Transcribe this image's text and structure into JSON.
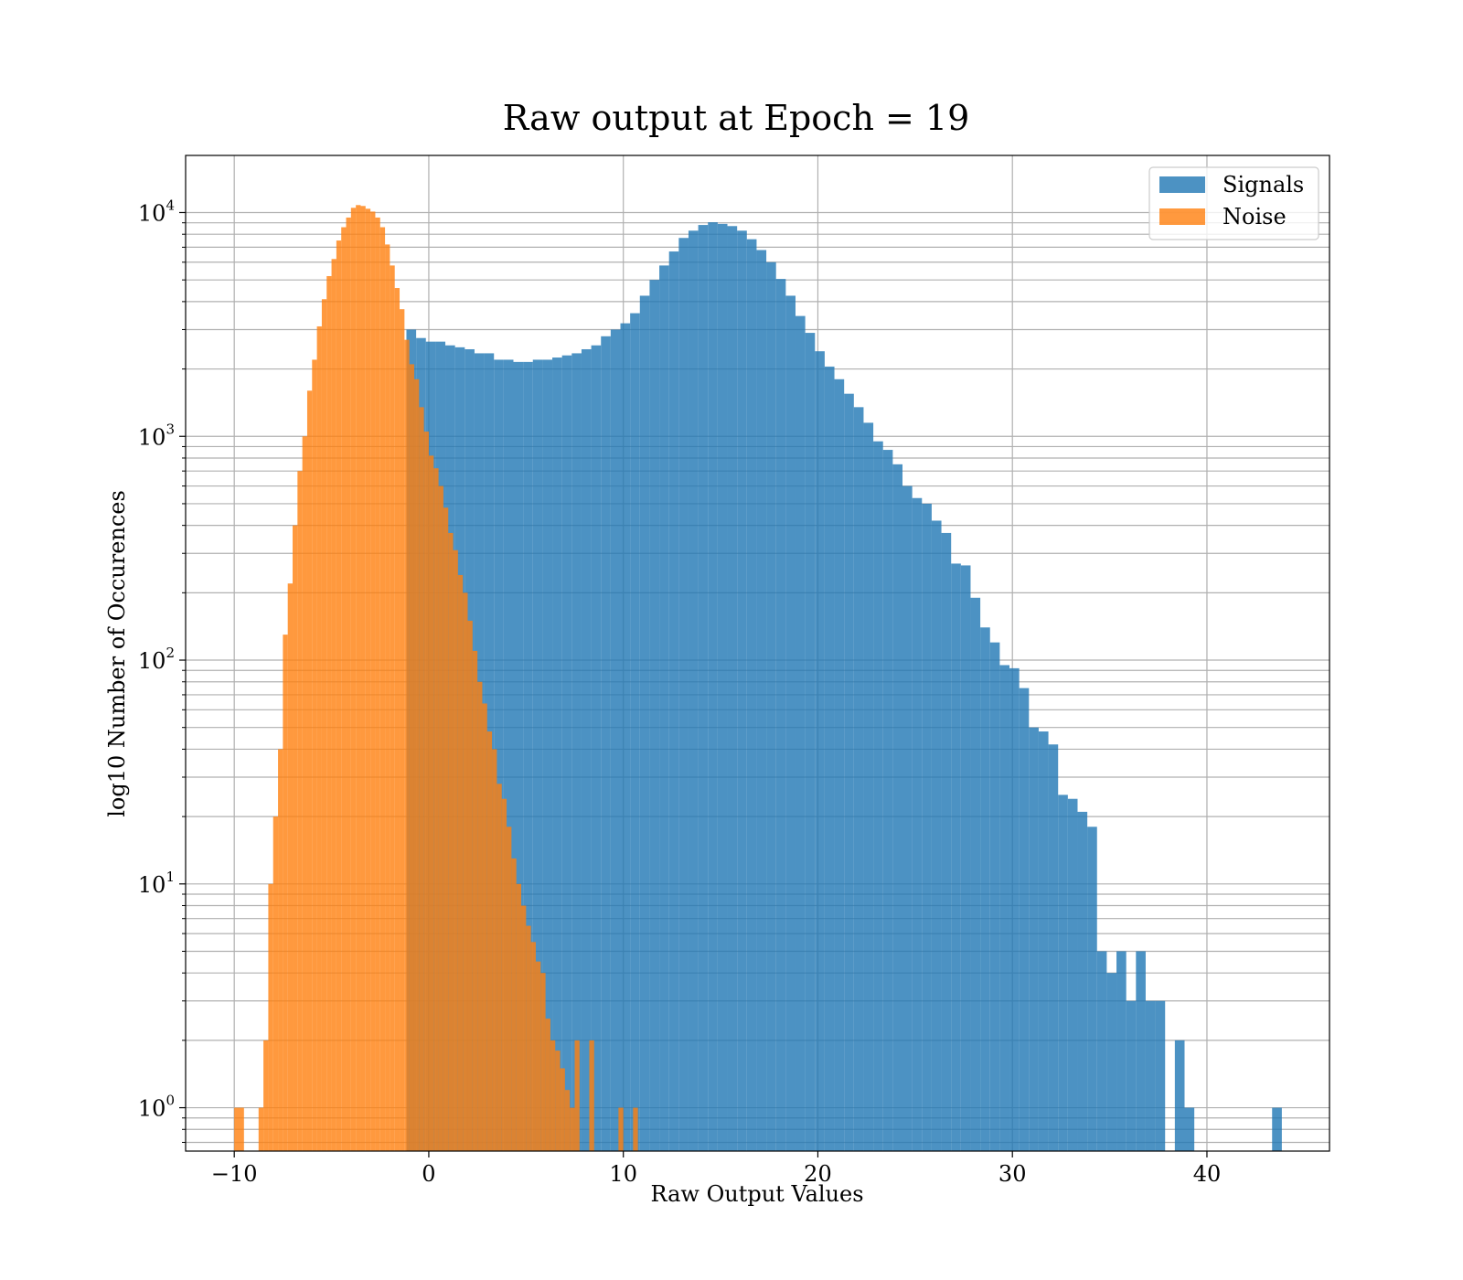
{
  "chart_data": {
    "type": "histogram",
    "title": "Raw output at Epoch = 19",
    "xlabel": "Raw Output Values",
    "ylabel": "log10 Number of Occurences",
    "xlim": [
      -12.5,
      46.3
    ],
    "ylim": [
      0.64,
      18000
    ],
    "yscale": "log",
    "grid": true,
    "legend_position": "top-right",
    "x_ticks": [
      {
        "value": -10,
        "label": "−10"
      },
      {
        "value": 0,
        "label": "0"
      },
      {
        "value": 10,
        "label": "10"
      },
      {
        "value": 20,
        "label": "20"
      },
      {
        "value": 30,
        "label": "30"
      },
      {
        "value": 40,
        "label": "40"
      }
    ],
    "y_ticks": [
      {
        "value": 1,
        "base": "10",
        "exp": "0"
      },
      {
        "value": 10,
        "base": "10",
        "exp": "1"
      },
      {
        "value": 100,
        "base": "10",
        "exp": "2"
      },
      {
        "value": 1000,
        "base": "10",
        "exp": "3"
      },
      {
        "value": 10000,
        "base": "10",
        "exp": "4"
      }
    ],
    "series": [
      {
        "name": "Signals",
        "color": "#1f77b4",
        "opacity": 0.8,
        "bins": [
          [
            -1.15,
            -0.65,
            3000
          ],
          [
            -0.65,
            -0.15,
            2750
          ],
          [
            -0.15,
            0.35,
            2650
          ],
          [
            0.35,
            0.85,
            2650
          ],
          [
            0.85,
            1.35,
            2550
          ],
          [
            1.35,
            1.85,
            2500
          ],
          [
            1.85,
            2.35,
            2450
          ],
          [
            2.35,
            2.85,
            2350
          ],
          [
            2.85,
            3.35,
            2350
          ],
          [
            3.35,
            3.85,
            2200
          ],
          [
            3.85,
            4.35,
            2200
          ],
          [
            4.35,
            4.85,
            2150
          ],
          [
            4.85,
            5.35,
            2150
          ],
          [
            5.35,
            5.85,
            2200
          ],
          [
            5.85,
            6.35,
            2200
          ],
          [
            6.35,
            6.85,
            2250
          ],
          [
            6.85,
            7.35,
            2300
          ],
          [
            7.35,
            7.85,
            2350
          ],
          [
            7.85,
            8.35,
            2450
          ],
          [
            8.35,
            8.85,
            2550
          ],
          [
            8.85,
            9.35,
            2800
          ],
          [
            9.35,
            9.85,
            3000
          ],
          [
            9.85,
            10.35,
            3200
          ],
          [
            10.35,
            10.85,
            3550
          ],
          [
            10.85,
            11.35,
            4250
          ],
          [
            11.35,
            11.85,
            5000
          ],
          [
            11.85,
            12.35,
            5800
          ],
          [
            12.35,
            12.85,
            6700
          ],
          [
            12.85,
            13.35,
            7700
          ],
          [
            13.35,
            13.85,
            8300
          ],
          [
            13.85,
            14.35,
            8800
          ],
          [
            14.35,
            14.85,
            9050
          ],
          [
            14.85,
            15.35,
            8900
          ],
          [
            15.35,
            15.85,
            8700
          ],
          [
            15.85,
            16.35,
            8300
          ],
          [
            16.35,
            16.85,
            7600
          ],
          [
            16.85,
            17.35,
            6800
          ],
          [
            17.35,
            17.85,
            6000
          ],
          [
            17.85,
            18.35,
            5050
          ],
          [
            18.35,
            18.85,
            4250
          ],
          [
            18.85,
            19.35,
            3450
          ],
          [
            19.35,
            19.85,
            2900
          ],
          [
            19.85,
            20.35,
            2400
          ],
          [
            20.35,
            20.85,
            2050
          ],
          [
            20.85,
            21.35,
            1800
          ],
          [
            21.35,
            21.85,
            1550
          ],
          [
            21.85,
            22.35,
            1350
          ],
          [
            22.35,
            22.85,
            1150
          ],
          [
            22.85,
            23.35,
            950
          ],
          [
            23.35,
            23.85,
            870
          ],
          [
            23.85,
            24.35,
            750
          ],
          [
            24.35,
            24.85,
            600
          ],
          [
            24.85,
            25.35,
            530
          ],
          [
            25.35,
            25.85,
            500
          ],
          [
            25.85,
            26.35,
            420
          ],
          [
            26.35,
            26.85,
            370
          ],
          [
            26.85,
            27.35,
            270
          ],
          [
            27.35,
            27.85,
            265
          ],
          [
            27.85,
            28.35,
            190
          ],
          [
            28.35,
            28.85,
            140
          ],
          [
            28.85,
            29.35,
            120
          ],
          [
            29.35,
            29.85,
            95
          ],
          [
            29.85,
            30.35,
            92
          ],
          [
            30.35,
            30.85,
            75
          ],
          [
            30.85,
            31.35,
            50
          ],
          [
            31.35,
            31.85,
            48
          ],
          [
            31.85,
            32.35,
            42
          ],
          [
            32.35,
            32.85,
            25
          ],
          [
            32.85,
            33.35,
            24
          ],
          [
            33.35,
            33.85,
            21
          ],
          [
            33.85,
            34.35,
            18
          ],
          [
            34.35,
            34.85,
            5
          ],
          [
            34.85,
            35.35,
            4
          ],
          [
            35.35,
            35.85,
            5
          ],
          [
            35.85,
            36.35,
            3
          ],
          [
            36.35,
            36.85,
            5
          ],
          [
            36.85,
            37.35,
            3
          ],
          [
            37.35,
            37.85,
            3
          ],
          [
            38.35,
            38.85,
            2
          ],
          [
            38.85,
            39.35,
            1
          ],
          [
            43.35,
            43.85,
            1
          ]
        ]
      },
      {
        "name": "Noise",
        "color": "#ff7f0e",
        "opacity": 0.8,
        "bins": [
          [
            -10.0,
            -9.5,
            1
          ],
          [
            -8.75,
            -8.5,
            1
          ],
          [
            -8.5,
            -8.25,
            2
          ],
          [
            -8.25,
            -8.0,
            10
          ],
          [
            -8.0,
            -7.75,
            20
          ],
          [
            -7.75,
            -7.5,
            40
          ],
          [
            -7.5,
            -7.25,
            130
          ],
          [
            -7.25,
            -7.0,
            220
          ],
          [
            -7.0,
            -6.75,
            400
          ],
          [
            -6.75,
            -6.5,
            700
          ],
          [
            -6.5,
            -6.25,
            1000
          ],
          [
            -6.25,
            -6.0,
            1600
          ],
          [
            -6.0,
            -5.75,
            2200
          ],
          [
            -5.75,
            -5.5,
            3100
          ],
          [
            -5.5,
            -5.25,
            4100
          ],
          [
            -5.25,
            -5.0,
            5200
          ],
          [
            -5.0,
            -4.75,
            6200
          ],
          [
            -4.75,
            -4.5,
            7500
          ],
          [
            -4.5,
            -4.25,
            8600
          ],
          [
            -4.25,
            -4.0,
            9500
          ],
          [
            -4.0,
            -3.75,
            10500
          ],
          [
            -3.75,
            -3.5,
            10800
          ],
          [
            -3.5,
            -3.25,
            10700
          ],
          [
            -3.25,
            -3.0,
            10400
          ],
          [
            -3.0,
            -2.75,
            10100
          ],
          [
            -2.75,
            -2.5,
            9500
          ],
          [
            -2.5,
            -2.25,
            8600
          ],
          [
            -2.25,
            -2.0,
            7200
          ],
          [
            -2.0,
            -1.75,
            5800
          ],
          [
            -1.75,
            -1.5,
            4600
          ],
          [
            -1.5,
            -1.25,
            3700
          ],
          [
            -1.25,
            -1.0,
            2700
          ],
          [
            -1.0,
            -0.75,
            2100
          ],
          [
            -0.75,
            -0.5,
            1800
          ],
          [
            -0.5,
            -0.25,
            1350
          ],
          [
            -0.25,
            0.0,
            1050
          ],
          [
            0.0,
            0.25,
            820
          ],
          [
            0.25,
            0.5,
            720
          ],
          [
            0.5,
            0.75,
            600
          ],
          [
            0.75,
            1.0,
            480
          ],
          [
            1.0,
            1.25,
            370
          ],
          [
            1.25,
            1.5,
            310
          ],
          [
            1.5,
            1.75,
            240
          ],
          [
            1.75,
            2.0,
            200
          ],
          [
            2.0,
            2.25,
            150
          ],
          [
            2.25,
            2.5,
            110
          ],
          [
            2.5,
            2.75,
            80
          ],
          [
            2.75,
            3.0,
            64
          ],
          [
            3.0,
            3.25,
            48
          ],
          [
            3.25,
            3.5,
            40
          ],
          [
            3.5,
            3.75,
            28
          ],
          [
            3.75,
            4.0,
            24
          ],
          [
            4.0,
            4.25,
            18
          ],
          [
            4.25,
            4.5,
            13
          ],
          [
            4.5,
            4.75,
            10
          ],
          [
            4.75,
            5.0,
            8
          ],
          [
            5.0,
            5.25,
            6.5
          ],
          [
            5.25,
            5.5,
            5.5
          ],
          [
            5.5,
            5.75,
            4.5
          ],
          [
            5.75,
            6.0,
            4
          ],
          [
            6.0,
            6.25,
            2.5
          ],
          [
            6.25,
            6.5,
            2
          ],
          [
            6.5,
            6.75,
            1.8
          ],
          [
            6.75,
            7.0,
            1.5
          ],
          [
            7.0,
            7.25,
            1.2
          ],
          [
            7.25,
            7.5,
            1
          ],
          [
            7.5,
            7.75,
            2
          ],
          [
            8.25,
            8.5,
            2
          ],
          [
            9.75,
            10.0,
            1
          ],
          [
            10.5,
            10.75,
            1
          ]
        ]
      }
    ]
  }
}
